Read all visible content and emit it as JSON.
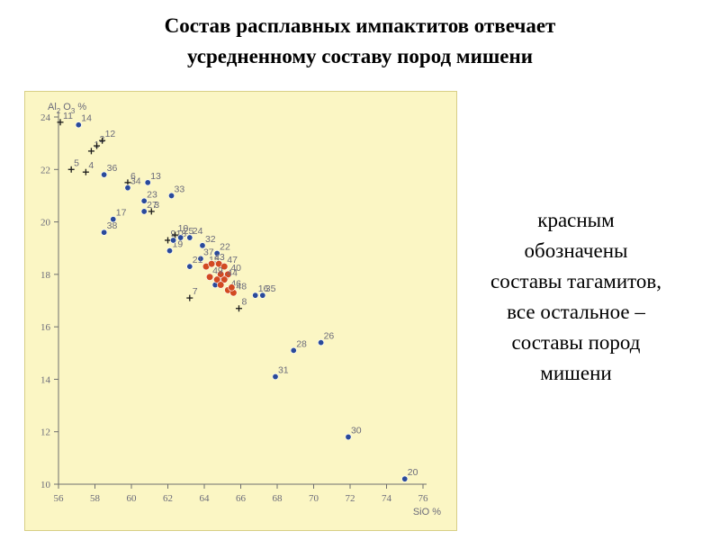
{
  "title": {
    "line1": "Состав расплавных импактитов отвечает",
    "line2": "усредненному составу пород мишени"
  },
  "note": {
    "lines": [
      "красным",
      "обозначены",
      "составы тагамитов,",
      "все остальное –",
      "составы пород",
      "мишени"
    ]
  },
  "colors": {
    "target_rock": "#2a4a9a",
    "tagamite": "#d24a22",
    "cross": "#1a1a1a",
    "panel_bg": "#fbf6c4",
    "label": "#6a6a7a"
  },
  "chart_data": {
    "type": "scatter",
    "xlabel": "SiO %",
    "ylabel": "Al O %",
    "xlabel_parts": {
      "main": "SiO",
      "sub": "",
      "unit": " %"
    },
    "ylabel_parts": {
      "main": "Al",
      "sub1": "2",
      "mid": " O",
      "sub2": "3",
      "unit": " %"
    },
    "xlim": [
      56,
      76
    ],
    "ylim": [
      10,
      24
    ],
    "xticks": [
      56,
      58,
      60,
      62,
      64,
      66,
      68,
      70,
      72,
      74,
      76
    ],
    "yticks": [
      10,
      12,
      14,
      16,
      18,
      20,
      22,
      24
    ],
    "grid": false,
    "series": [
      {
        "marker": "cross",
        "points": [
          {
            "x": 56.1,
            "y": 23.8,
            "label": "11"
          },
          {
            "x": 57.8,
            "y": 22.7,
            "label": "1"
          },
          {
            "x": 58.1,
            "y": 22.9,
            "label": "2"
          },
          {
            "x": 58.4,
            "y": 23.1,
            "label": "12"
          },
          {
            "x": 56.7,
            "y": 22.0,
            "label": "5"
          },
          {
            "x": 57.5,
            "y": 21.9,
            "label": "4"
          },
          {
            "x": 59.8,
            "y": 21.5,
            "label": "6"
          },
          {
            "x": 61.1,
            "y": 20.4,
            "label": "3"
          },
          {
            "x": 62.0,
            "y": 19.3,
            "label": "9"
          },
          {
            "x": 62.4,
            "y": 19.5,
            "label": "10"
          },
          {
            "x": 63.2,
            "y": 17.1,
            "label": "7"
          },
          {
            "x": 65.9,
            "y": 16.7,
            "label": "8"
          }
        ]
      },
      {
        "marker": "dot",
        "color_key": "target_rock",
        "points": [
          {
            "x": 57.1,
            "y": 23.7,
            "label": "14"
          },
          {
            "x": 58.5,
            "y": 21.8,
            "label": "36"
          },
          {
            "x": 59.8,
            "y": 21.3,
            "label": "34"
          },
          {
            "x": 60.9,
            "y": 21.5,
            "label": "13"
          },
          {
            "x": 60.7,
            "y": 20.8,
            "label": "23"
          },
          {
            "x": 60.7,
            "y": 20.4,
            "label": "27"
          },
          {
            "x": 62.2,
            "y": 21.0,
            "label": "33"
          },
          {
            "x": 59.0,
            "y": 20.1,
            "label": "17"
          },
          {
            "x": 58.5,
            "y": 19.6,
            "label": "38"
          },
          {
            "x": 62.1,
            "y": 18.9,
            "label": "19"
          },
          {
            "x": 62.3,
            "y": 19.3,
            "label": "18"
          },
          {
            "x": 62.7,
            "y": 19.4,
            "label": "25"
          },
          {
            "x": 63.2,
            "y": 19.4,
            "label": "24"
          },
          {
            "x": 63.9,
            "y": 19.1,
            "label": "32"
          },
          {
            "x": 64.7,
            "y": 18.8,
            "label": "22"
          },
          {
            "x": 63.8,
            "y": 18.6,
            "label": "37"
          },
          {
            "x": 63.2,
            "y": 18.3,
            "label": "21"
          },
          {
            "x": 64.6,
            "y": 17.6,
            "label": "29"
          },
          {
            "x": 66.8,
            "y": 17.2,
            "label": "16"
          },
          {
            "x": 67.2,
            "y": 17.2,
            "label": "35"
          },
          {
            "x": 68.9,
            "y": 15.1,
            "label": "28"
          },
          {
            "x": 70.4,
            "y": 15.4,
            "label": "26"
          },
          {
            "x": 67.9,
            "y": 14.1,
            "label": "31"
          },
          {
            "x": 71.9,
            "y": 11.8,
            "label": "30"
          },
          {
            "x": 75.0,
            "y": 10.2,
            "label": "20"
          }
        ]
      },
      {
        "marker": "dot",
        "color_key": "tagamite",
        "points": [
          {
            "x": 64.1,
            "y": 18.3,
            "label": "15"
          },
          {
            "x": 64.4,
            "y": 18.4,
            "label": "43"
          },
          {
            "x": 64.8,
            "y": 18.4,
            "label": ""
          },
          {
            "x": 65.1,
            "y": 18.3,
            "label": "47"
          },
          {
            "x": 64.9,
            "y": 18.0,
            "label": ""
          },
          {
            "x": 65.3,
            "y": 18.0,
            "label": "40"
          },
          {
            "x": 64.3,
            "y": 17.9,
            "label": "49"
          },
          {
            "x": 64.7,
            "y": 17.8,
            "label": ""
          },
          {
            "x": 65.1,
            "y": 17.8,
            "label": "44"
          },
          {
            "x": 64.9,
            "y": 17.6,
            "label": ""
          },
          {
            "x": 65.3,
            "y": 17.4,
            "label": "46"
          },
          {
            "x": 65.6,
            "y": 17.3,
            "label": "48"
          },
          {
            "x": 65.5,
            "y": 17.5,
            "label": ""
          }
        ]
      }
    ]
  }
}
